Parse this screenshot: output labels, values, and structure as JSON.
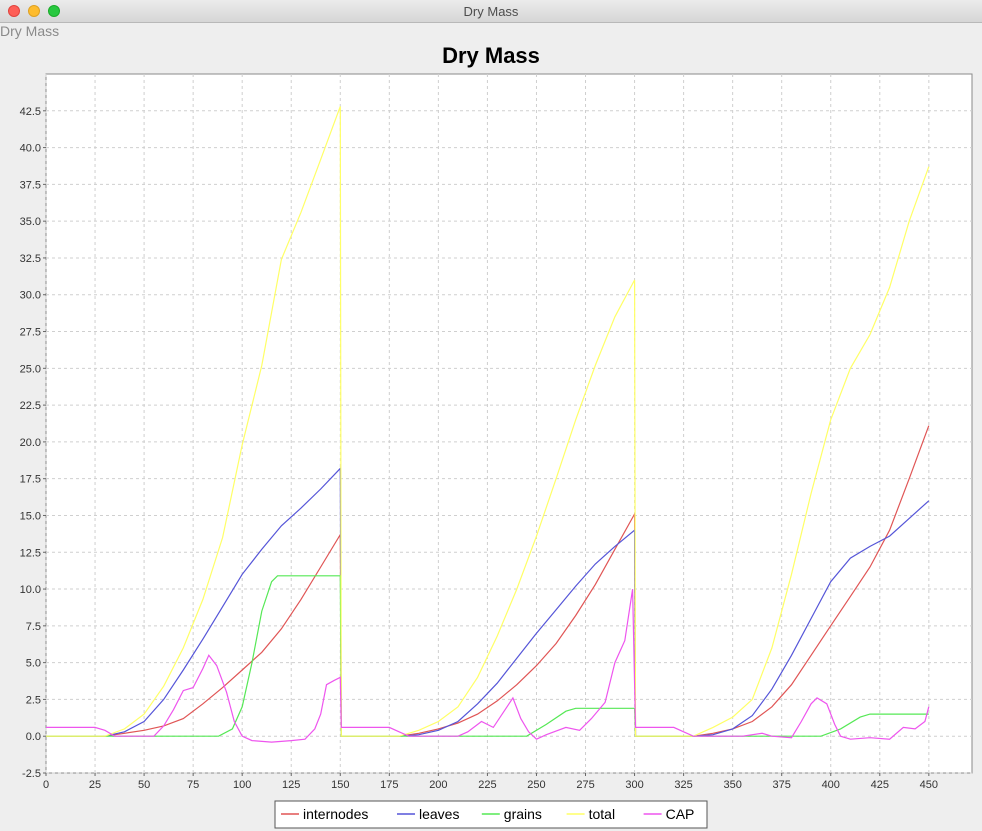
{
  "window": {
    "title": "Dry Mass",
    "frame_label": "Dry Mass"
  },
  "colors": {
    "internodes": "#e05555",
    "leaves": "#5555d8",
    "grains": "#55e855",
    "total": "#ffff66",
    "CAP": "#ee55ee"
  },
  "chart_data": {
    "type": "line",
    "title": "Dry Mass",
    "xlabel": "",
    "ylabel": "",
    "xlim": [
      0,
      472
    ],
    "ylim": [
      -2.5,
      45
    ],
    "xticks": [
      "0",
      "25",
      "50",
      "75",
      "100",
      "125",
      "150",
      "175",
      "200",
      "225",
      "250",
      "275",
      "300",
      "325",
      "350",
      "375",
      "400",
      "425",
      "450"
    ],
    "yticks": [
      "-2.5",
      "0.0",
      "2.5",
      "5.0",
      "7.5",
      "10.0",
      "12.5",
      "15.0",
      "17.5",
      "20.0",
      "22.5",
      "25.0",
      "27.5",
      "30.0",
      "32.5",
      "35.0",
      "37.5",
      "40.0",
      "42.5"
    ],
    "grid": true,
    "legend_position": "bottom",
    "series": [
      {
        "name": "internodes",
        "color": "#e05555",
        "points": [
          [
            0,
            0
          ],
          [
            30,
            0
          ],
          [
            40,
            0.2
          ],
          [
            50,
            0.4
          ],
          [
            60,
            0.7
          ],
          [
            70,
            1.2
          ],
          [
            80,
            2.2
          ],
          [
            90,
            3.3
          ],
          [
            100,
            4.5
          ],
          [
            110,
            5.7
          ],
          [
            120,
            7.3
          ],
          [
            130,
            9.3
          ],
          [
            140,
            11.5
          ],
          [
            150,
            13.7
          ],
          [
            150.5,
            0
          ],
          [
            180,
            0
          ],
          [
            190,
            0.2
          ],
          [
            200,
            0.5
          ],
          [
            210,
            0.9
          ],
          [
            220,
            1.5
          ],
          [
            230,
            2.4
          ],
          [
            240,
            3.5
          ],
          [
            250,
            4.8
          ],
          [
            260,
            6.3
          ],
          [
            270,
            8.2
          ],
          [
            280,
            10.3
          ],
          [
            290,
            12.7
          ],
          [
            300,
            15.1
          ],
          [
            300.5,
            0
          ],
          [
            330,
            0
          ],
          [
            340,
            0.2
          ],
          [
            350,
            0.5
          ],
          [
            360,
            1
          ],
          [
            370,
            2
          ],
          [
            380,
            3.5
          ],
          [
            390,
            5.5
          ],
          [
            400,
            7.5
          ],
          [
            410,
            9.5
          ],
          [
            420,
            11.5
          ],
          [
            430,
            14
          ],
          [
            440,
            17.5
          ],
          [
            450,
            21.1
          ]
        ]
      },
      {
        "name": "leaves",
        "color": "#5555d8",
        "points": [
          [
            0,
            0
          ],
          [
            30,
            0
          ],
          [
            40,
            0.3
          ],
          [
            50,
            1.0
          ],
          [
            60,
            2.5
          ],
          [
            70,
            4.5
          ],
          [
            80,
            6.6
          ],
          [
            90,
            8.8
          ],
          [
            100,
            11
          ],
          [
            110,
            12.7
          ],
          [
            120,
            14.3
          ],
          [
            130,
            15.5
          ],
          [
            140,
            16.8
          ],
          [
            150,
            18.2
          ],
          [
            150.5,
            0
          ],
          [
            180,
            0
          ],
          [
            190,
            0.1
          ],
          [
            200,
            0.4
          ],
          [
            210,
            1.0
          ],
          [
            220,
            2.2
          ],
          [
            230,
            3.6
          ],
          [
            240,
            5.3
          ],
          [
            250,
            7.0
          ],
          [
            260,
            8.6
          ],
          [
            270,
            10.2
          ],
          [
            280,
            11.7
          ],
          [
            290,
            12.9
          ],
          [
            300,
            14.0
          ],
          [
            300.5,
            0
          ],
          [
            330,
            0
          ],
          [
            340,
            0.1
          ],
          [
            350,
            0.5
          ],
          [
            360,
            1.4
          ],
          [
            370,
            3.2
          ],
          [
            380,
            5.5
          ],
          [
            390,
            8.0
          ],
          [
            400,
            10.5
          ],
          [
            410,
            12.1
          ],
          [
            420,
            12.9
          ],
          [
            430,
            13.6
          ],
          [
            440,
            14.8
          ],
          [
            450,
            16.0
          ]
        ]
      },
      {
        "name": "grains",
        "color": "#55e855",
        "points": [
          [
            0,
            0
          ],
          [
            88,
            0
          ],
          [
            95,
            0.5
          ],
          [
            100,
            2
          ],
          [
            105,
            5
          ],
          [
            110,
            8.5
          ],
          [
            115,
            10.5
          ],
          [
            118,
            10.9
          ],
          [
            150,
            10.9
          ],
          [
            150.5,
            0
          ],
          [
            245,
            0
          ],
          [
            255,
            0.8
          ],
          [
            265,
            1.7
          ],
          [
            270,
            1.9
          ],
          [
            300,
            1.9
          ],
          [
            300.5,
            0
          ],
          [
            395,
            0
          ],
          [
            405,
            0.5
          ],
          [
            415,
            1.3
          ],
          [
            420,
            1.5
          ],
          [
            450,
            1.5
          ]
        ]
      },
      {
        "name": "total",
        "color": "#ffff66",
        "points": [
          [
            0,
            0
          ],
          [
            30,
            0
          ],
          [
            40,
            0.5
          ],
          [
            50,
            1.5
          ],
          [
            60,
            3.4
          ],
          [
            70,
            6
          ],
          [
            80,
            9.3
          ],
          [
            90,
            13.5
          ],
          [
            100,
            19.8
          ],
          [
            110,
            25.2
          ],
          [
            120,
            32.4
          ],
          [
            130,
            35.6
          ],
          [
            140,
            39.2
          ],
          [
            150,
            42.8
          ],
          [
            150.5,
            0
          ],
          [
            180,
            0
          ],
          [
            190,
            0.4
          ],
          [
            200,
            1.0
          ],
          [
            210,
            2.0
          ],
          [
            220,
            4.0
          ],
          [
            230,
            6.8
          ],
          [
            240,
            10
          ],
          [
            250,
            13.6
          ],
          [
            260,
            17.5
          ],
          [
            270,
            21.5
          ],
          [
            280,
            25.2
          ],
          [
            290,
            28.5
          ],
          [
            300,
            31
          ],
          [
            300.5,
            0
          ],
          [
            330,
            0
          ],
          [
            340,
            0.6
          ],
          [
            350,
            1.3
          ],
          [
            360,
            2.5
          ],
          [
            370,
            6
          ],
          [
            380,
            11
          ],
          [
            390,
            16.5
          ],
          [
            400,
            21.5
          ],
          [
            410,
            25
          ],
          [
            420,
            27.3
          ],
          [
            430,
            30.5
          ],
          [
            440,
            35
          ],
          [
            450,
            38.7
          ]
        ]
      },
      {
        "name": "CAP",
        "color": "#ee55ee",
        "points": [
          [
            0,
            0.6
          ],
          [
            25,
            0.6
          ],
          [
            30,
            0.4
          ],
          [
            35,
            0
          ],
          [
            55,
            0
          ],
          [
            60,
            0.7
          ],
          [
            65,
            1.8
          ],
          [
            70,
            3.1
          ],
          [
            75,
            3.3
          ],
          [
            80,
            4.6
          ],
          [
            83,
            5.5
          ],
          [
            87,
            4.8
          ],
          [
            92,
            3.0
          ],
          [
            96,
            1.0
          ],
          [
            100,
            0
          ],
          [
            105,
            -0.3
          ],
          [
            115,
            -0.4
          ],
          [
            125,
            -0.3
          ],
          [
            132,
            -0.2
          ],
          [
            137,
            0.5
          ],
          [
            140,
            1.5
          ],
          [
            143,
            3.5
          ],
          [
            147,
            3.8
          ],
          [
            150,
            4.0
          ],
          [
            150.5,
            0.6
          ],
          [
            175,
            0.6
          ],
          [
            180,
            0.3
          ],
          [
            185,
            0
          ],
          [
            210,
            0
          ],
          [
            215,
            0.3
          ],
          [
            222,
            1.0
          ],
          [
            228,
            0.6
          ],
          [
            234,
            1.8
          ],
          [
            238,
            2.6
          ],
          [
            242,
            1.2
          ],
          [
            246,
            0.3
          ],
          [
            250,
            -0.2
          ],
          [
            255,
            0.1
          ],
          [
            265,
            0.6
          ],
          [
            272,
            0.4
          ],
          [
            278,
            1.2
          ],
          [
            285,
            2.3
          ],
          [
            290,
            5.0
          ],
          [
            295,
            6.5
          ],
          [
            299,
            10.0
          ],
          [
            300.5,
            0.6
          ],
          [
            320,
            0.6
          ],
          [
            325,
            0.3
          ],
          [
            330,
            0
          ],
          [
            355,
            0
          ],
          [
            365,
            0.2
          ],
          [
            370,
            0
          ],
          [
            380,
            -0.1
          ],
          [
            385,
            1.0
          ],
          [
            390,
            2.2
          ],
          [
            393,
            2.6
          ],
          [
            398,
            2.2
          ],
          [
            402,
            0.8
          ],
          [
            405,
            0
          ],
          [
            410,
            -0.2
          ],
          [
            420,
            -0.1
          ],
          [
            430,
            -0.2
          ],
          [
            437,
            0.6
          ],
          [
            443,
            0.5
          ],
          [
            448,
            1.0
          ],
          [
            450,
            2.0
          ]
        ]
      }
    ]
  }
}
